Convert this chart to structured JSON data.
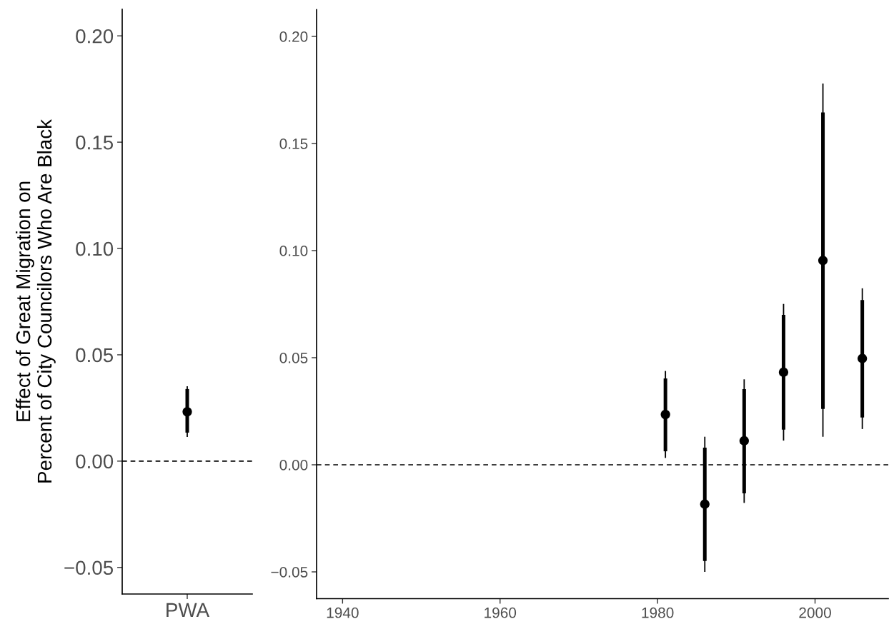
{
  "chart_data": [
    {
      "type": "scatter",
      "ylabel": "Effect of Great Migration on\nPercent of City Councilors Who Are Black",
      "categories": [
        "PWA"
      ],
      "ylim": [
        -0.0625,
        0.2125
      ],
      "yticks": [
        {
          "value": -0.05,
          "label": "−0.05"
        },
        {
          "value": 0,
          "label": "0.00"
        },
        {
          "value": 0.05,
          "label": "0.05"
        },
        {
          "value": 0.1,
          "label": "0.10"
        },
        {
          "value": 0.15,
          "label": "0.15"
        },
        {
          "value": 0.2,
          "label": "0.20"
        }
      ],
      "marker": "circle",
      "grid": false,
      "legend": false,
      "series": [
        {
          "color": "#000000",
          "values": [
            0.0232
          ],
          "errors": [
            [
              0.0114,
              0.0352
            ]
          ]
        },
        {
          "type": "bar",
          "color": "#000000",
          "base": [
            0.0134
          ],
          "values": [
            0.0205
          ]
        }
      ],
      "ref_lines": [
        {
          "axis": "y",
          "value": 0,
          "line_style": "dashed",
          "color": "#000000"
        }
      ]
    },
    {
      "type": "scatter",
      "x": [
        1981,
        1986,
        1991,
        1996,
        2001,
        2006
      ],
      "xlim": [
        1936.7,
        2009.3
      ],
      "xticks": [
        1940,
        1960,
        1980,
        2000
      ],
      "ylim": [
        -0.0625,
        0.2125
      ],
      "yticks": [
        {
          "value": -0.05,
          "label": "−0.05"
        },
        {
          "value": 0,
          "label": "0.00"
        },
        {
          "value": 0.05,
          "label": "0.05"
        },
        {
          "value": 0.1,
          "label": "0.10"
        },
        {
          "value": 0.15,
          "label": "0.15"
        },
        {
          "value": 0.2,
          "label": "0.20"
        }
      ],
      "marker": "circle",
      "grid": false,
      "legend": false,
      "series": [
        {
          "color": "#000000",
          "values": [
            0.0235,
            -0.0184,
            0.0112,
            0.0432,
            0.0954,
            0.0496
          ],
          "errors": [
            [
              0.0032,
              0.0438
            ],
            [
              -0.05,
              0.0131
            ],
            [
              -0.0178,
              0.0399
            ],
            [
              0.0113,
              0.0751
            ],
            [
              0.0131,
              0.178
            ],
            [
              0.0167,
              0.0824
            ]
          ]
        },
        {
          "type": "bar",
          "color": "#000000",
          "base": [
            0.0063,
            -0.0449,
            -0.0133,
            0.0164,
            0.0261,
            0.0221
          ],
          "values": [
            0.034,
            0.0529,
            0.0486,
            0.0536,
            0.1384,
            0.0548
          ]
        }
      ],
      "ref_lines": [
        {
          "axis": "y",
          "value": 0,
          "line_style": "dashed",
          "color": "#000000"
        }
      ]
    }
  ]
}
